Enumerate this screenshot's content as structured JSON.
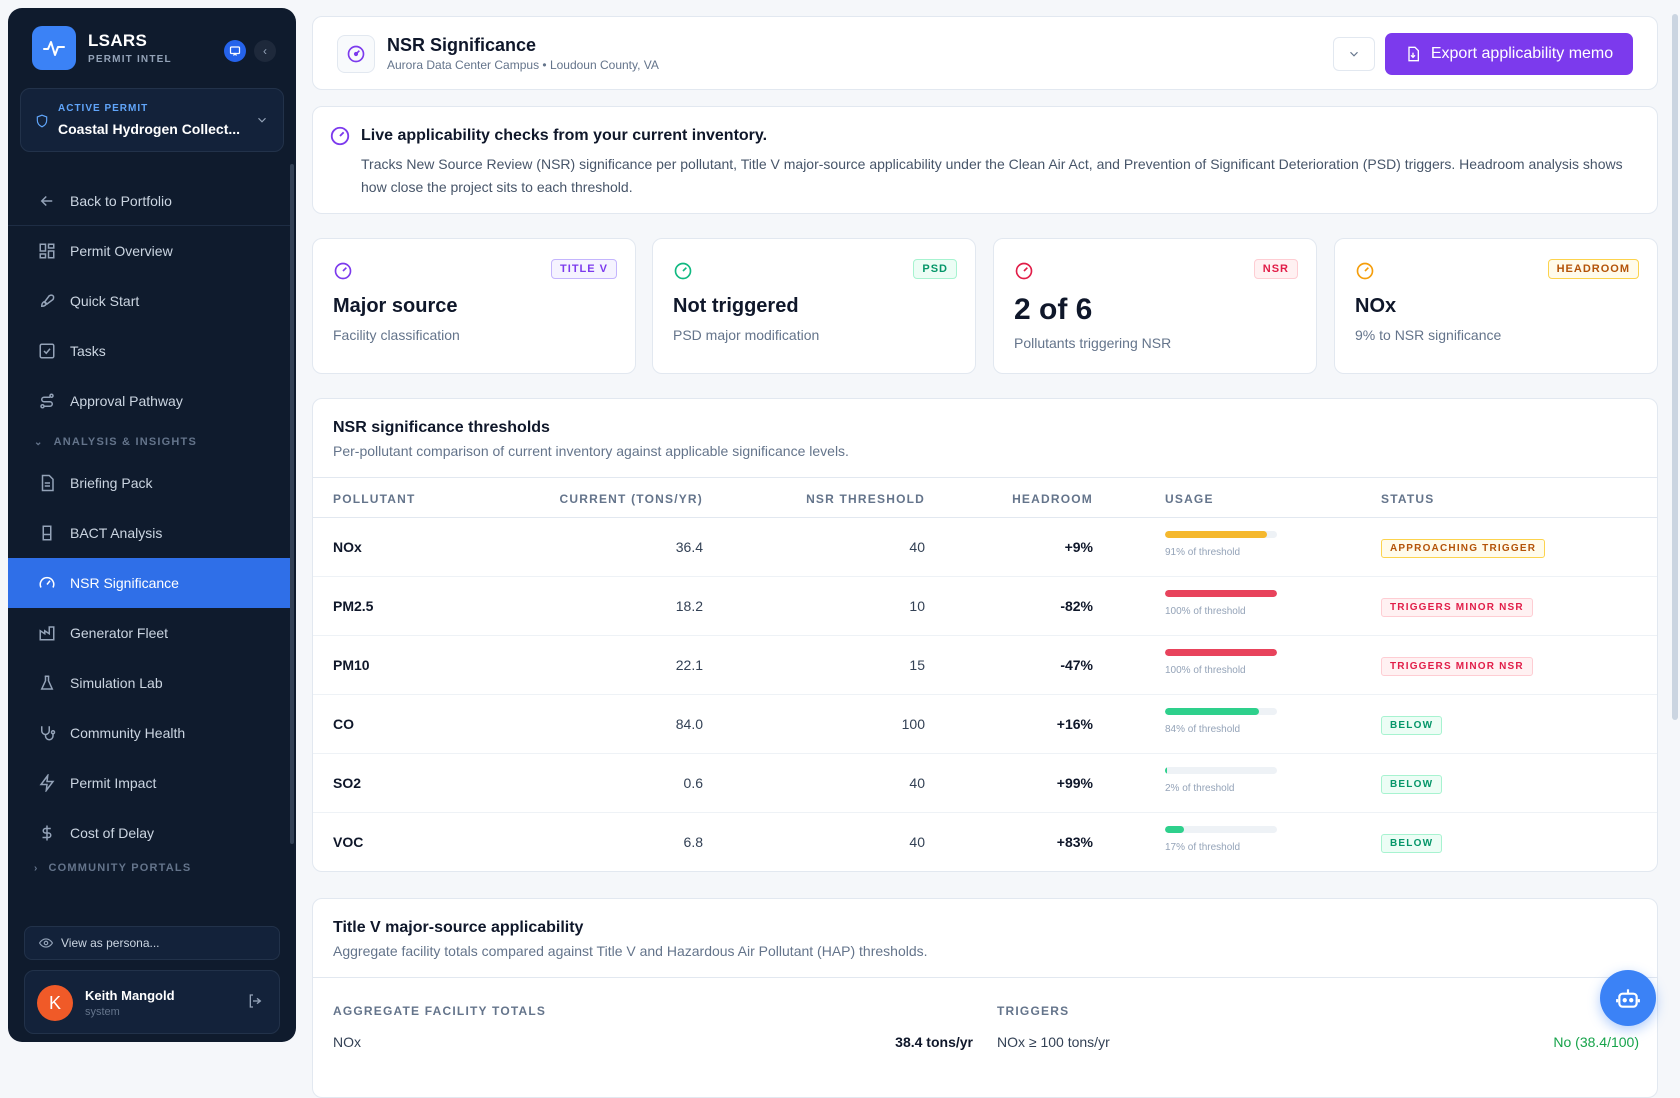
{
  "brand": {
    "name": "LSARS",
    "subtitle": "PERMIT INTEL"
  },
  "active_permit": {
    "label": "ACTIVE PERMIT",
    "name": "Coastal Hydrogen Collect..."
  },
  "nav": {
    "back": "Back to Portfolio",
    "items": [
      "Permit Overview",
      "Quick Start",
      "Tasks",
      "Approval Pathway"
    ],
    "section_analysis": "ANALYSIS & INSIGHTS",
    "analysis_items": [
      "Briefing Pack",
      "BACT Analysis",
      "NSR Significance",
      "Generator Fleet",
      "Simulation Lab",
      "Community Health",
      "Permit Impact",
      "Cost of Delay"
    ],
    "active": "NSR Significance",
    "section_community": "COMMUNITY PORTALS"
  },
  "persona": {
    "placeholder": "View as persona..."
  },
  "user": {
    "initial": "K",
    "name": "Keith Mangold",
    "role": "system"
  },
  "header": {
    "title": "NSR Significance",
    "subtitle": "Aurora Data Center Campus • Loudoun County, VA",
    "export_label": "Export applicability memo"
  },
  "info": {
    "title": "Live applicability checks from your current inventory.",
    "text": "Tracks New Source Review (NSR) significance per pollutant, Title V major-source applicability under the Clean Air Act, and Prevention of Significant Deterioration (PSD) triggers. Headroom analysis shows how close the project sits to each threshold."
  },
  "stats": [
    {
      "badge": "TITLE V",
      "value": "Major source",
      "label": "Facility classification",
      "color": "#7c3aed"
    },
    {
      "badge": "PSD",
      "value": "Not triggered",
      "label": "PSD major modification",
      "color": "#10b981"
    },
    {
      "badge": "NSR",
      "value": "2 of 6",
      "label": "Pollutants triggering NSR",
      "color": "#e11d48"
    },
    {
      "badge": "HEADROOM",
      "value": "NOx",
      "label": "9% to NSR significance",
      "color": "#f59e0b"
    }
  ],
  "nsr_table": {
    "title": "NSR significance thresholds",
    "subtitle": "Per-pollutant comparison of current inventory against applicable significance levels.",
    "columns": [
      "POLLUTANT",
      "CURRENT (TONS/YR)",
      "NSR THRESHOLD",
      "HEADROOM",
      "USAGE",
      "STATUS"
    ],
    "rows": [
      {
        "pollutant": "NOx",
        "current": "36.4",
        "threshold": "40",
        "headroom": "+9%",
        "usage": 91,
        "usage_label": "91% of threshold",
        "status": "APPROACHING TRIGGER",
        "level": "warn"
      },
      {
        "pollutant": "PM2.5",
        "current": "18.2",
        "threshold": "10",
        "headroom": "-82%",
        "usage": 100,
        "usage_label": "100% of threshold",
        "status": "TRIGGERS MINOR NSR",
        "level": "bad"
      },
      {
        "pollutant": "PM10",
        "current": "22.1",
        "threshold": "15",
        "headroom": "-47%",
        "usage": 100,
        "usage_label": "100% of threshold",
        "status": "TRIGGERS MINOR NSR",
        "level": "bad"
      },
      {
        "pollutant": "CO",
        "current": "84.0",
        "threshold": "100",
        "headroom": "+16%",
        "usage": 84,
        "usage_label": "84% of threshold",
        "status": "BELOW",
        "level": "ok"
      },
      {
        "pollutant": "SO2",
        "current": "0.6",
        "threshold": "40",
        "headroom": "+99%",
        "usage": 2,
        "usage_label": "2% of threshold",
        "status": "BELOW",
        "level": "ok"
      },
      {
        "pollutant": "VOC",
        "current": "6.8",
        "threshold": "40",
        "headroom": "+83%",
        "usage": 17,
        "usage_label": "17% of threshold",
        "status": "BELOW",
        "level": "ok"
      }
    ]
  },
  "titlev": {
    "title": "Title V major-source applicability",
    "subtitle": "Aggregate facility totals compared against Title V and Hazardous Air Pollutant (HAP) thresholds.",
    "col_totals": "AGGREGATE FACILITY TOTALS",
    "col_triggers": "TRIGGERS",
    "row": {
      "pollutant": "NOx",
      "value": "38.4 tons/yr",
      "trigger": "NOx ≥ 100 tons/yr",
      "result": "No (38.4/100)"
    }
  },
  "colors": {
    "accent": "#7c3aed",
    "nav_active": "#2f6fe8",
    "warn": "#f5b82e",
    "bad": "#e8435c",
    "ok": "#2ed08c"
  }
}
